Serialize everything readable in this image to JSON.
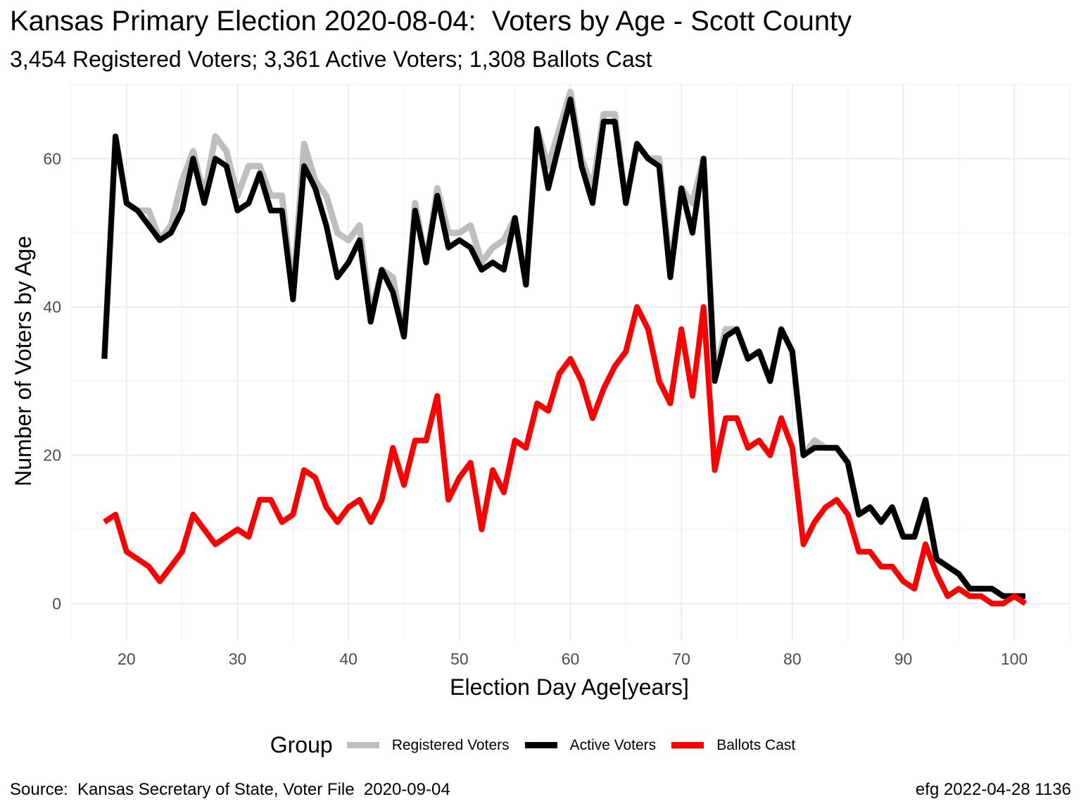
{
  "chart_data": {
    "type": "line",
    "title": "Kansas Primary Election 2020-08-04:  Voters by Age - Scott County",
    "subtitle": "3,454 Registered Voters; 3,361 Active Voters; 1,308 Ballots Cast",
    "xlabel": "Election Day Age[years]",
    "ylabel": "Number of Voters by Age",
    "xlim": [
      15,
      105
    ],
    "ylim": [
      -5,
      70
    ],
    "x_ticks": [
      20,
      30,
      40,
      50,
      60,
      70,
      80,
      90,
      100
    ],
    "y_ticks": [
      0,
      20,
      40,
      60
    ],
    "grid": true,
    "legend_position": "bottom",
    "legend_title": "Group",
    "caption_left": "Source:  Kansas Secretary of State, Voter File  2020-09-04",
    "caption_right": "efg 2022-04-28 1136",
    "x": [
      18,
      19,
      20,
      21,
      22,
      23,
      24,
      25,
      26,
      27,
      28,
      29,
      30,
      31,
      32,
      33,
      34,
      35,
      36,
      37,
      38,
      39,
      40,
      41,
      42,
      43,
      44,
      45,
      46,
      47,
      48,
      49,
      50,
      51,
      52,
      53,
      54,
      55,
      56,
      57,
      58,
      59,
      60,
      61,
      62,
      63,
      64,
      65,
      66,
      67,
      68,
      69,
      70,
      71,
      72,
      73,
      74,
      75,
      76,
      77,
      78,
      79,
      80,
      81,
      82,
      83,
      84,
      85,
      86,
      87,
      88,
      89,
      90,
      91,
      92,
      93,
      94,
      95,
      96,
      97,
      98,
      99,
      100,
      101
    ],
    "series": [
      {
        "name": "Registered Voters",
        "color": "#bebebe",
        "values": [
          33,
          63,
          54,
          53,
          53,
          49,
          51,
          57,
          61,
          55,
          63,
          61,
          55,
          59,
          59,
          55,
          55,
          42,
          62,
          57,
          55,
          50,
          49,
          51,
          39,
          45,
          44,
          36,
          54,
          46,
          56,
          50,
          50,
          51,
          46,
          48,
          49,
          52,
          43,
          64,
          59,
          64,
          69,
          60,
          56,
          66,
          66,
          54,
          62,
          60,
          60,
          45,
          56,
          54,
          60,
          31,
          37,
          37,
          33,
          34,
          30,
          37,
          34,
          20,
          22,
          21,
          21,
          19,
          12,
          13,
          11,
          13,
          9,
          9,
          14,
          6,
          5,
          4,
          2,
          2,
          2,
          1,
          1,
          1
        ]
      },
      {
        "name": "Active Voters",
        "color": "#000000",
        "values": [
          33,
          63,
          54,
          53,
          51,
          49,
          50,
          53,
          60,
          54,
          60,
          59,
          53,
          54,
          58,
          53,
          53,
          41,
          59,
          56,
          51,
          44,
          46,
          49,
          38,
          45,
          42,
          36,
          53,
          46,
          55,
          48,
          49,
          48,
          45,
          46,
          45,
          52,
          43,
          64,
          56,
          62,
          68,
          59,
          54,
          65,
          65,
          54,
          62,
          60,
          59,
          44,
          56,
          50,
          60,
          30,
          36,
          37,
          33,
          34,
          30,
          37,
          34,
          20,
          21,
          21,
          21,
          19,
          12,
          13,
          11,
          13,
          9,
          9,
          14,
          6,
          5,
          4,
          2,
          2,
          2,
          1,
          1,
          1
        ]
      },
      {
        "name": "Ballots Cast",
        "color": "#ff0000",
        "values": [
          11,
          12,
          7,
          6,
          5,
          3,
          5,
          7,
          12,
          10,
          8,
          9,
          10,
          9,
          14,
          14,
          11,
          12,
          18,
          17,
          13,
          11,
          13,
          14,
          11,
          14,
          21,
          16,
          22,
          22,
          28,
          14,
          17,
          19,
          10,
          18,
          15,
          22,
          21,
          27,
          26,
          31,
          33,
          30,
          25,
          29,
          32,
          34,
          40,
          37,
          30,
          27,
          37,
          28,
          40,
          18,
          25,
          25,
          21,
          22,
          20,
          25,
          21,
          8,
          11,
          13,
          14,
          12,
          7,
          7,
          5,
          5,
          3,
          2,
          8,
          4,
          1,
          2,
          1,
          1,
          0,
          0,
          1,
          0
        ]
      }
    ]
  }
}
